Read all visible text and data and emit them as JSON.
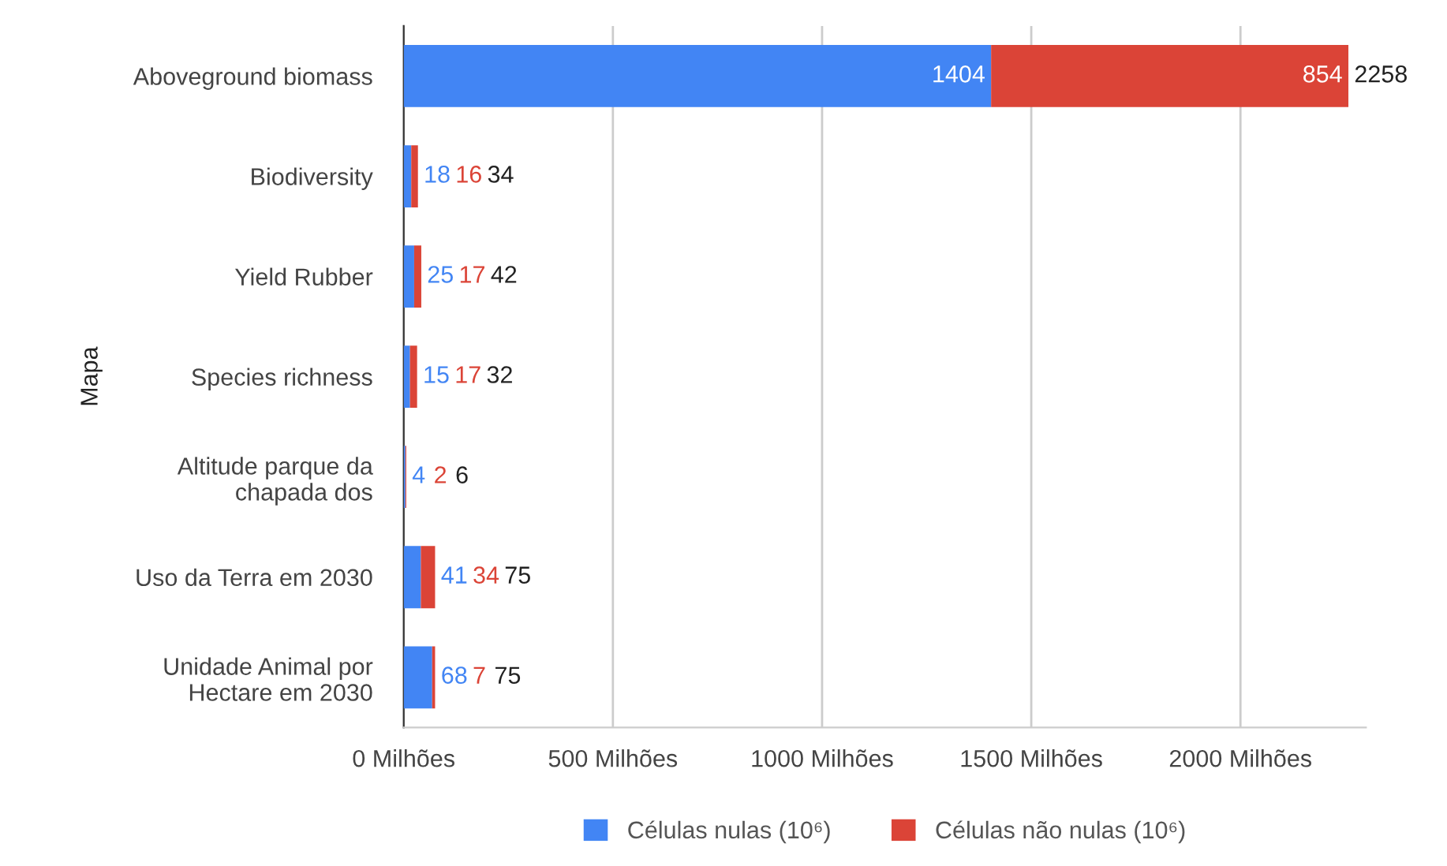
{
  "chart_data": {
    "type": "bar",
    "orientation": "horizontal",
    "stacked": true,
    "ylabel": "Mapa",
    "categories": [
      "Aboveground biomass",
      "Biodiversity",
      "Yield Rubber",
      "Species richness",
      "Altitude parque da chapada dos",
      "Uso da Terra em 2030",
      "Unidade Animal por Hectare em 2030"
    ],
    "series": [
      {
        "name": "Células nulas (10⁶)",
        "color": "#4285f4",
        "values": [
          1404,
          18,
          25,
          15,
          4,
          41,
          68
        ]
      },
      {
        "name": "Células não nulas (10⁶)",
        "color": "#db4437",
        "values": [
          854,
          16,
          17,
          17,
          2,
          34,
          7
        ]
      }
    ],
    "totals": [
      "2258",
      "34",
      "42",
      "32",
      "6",
      "75",
      "75"
    ],
    "data_labels": true,
    "xlim": [
      0,
      2300
    ],
    "xticks": [
      {
        "value": 0,
        "label": "0 Milhões"
      },
      {
        "value": 500,
        "label": "500 Milhões"
      },
      {
        "value": 1000,
        "label": "1000 Milhões"
      },
      {
        "value": 1500,
        "label": "1500 Milhões"
      },
      {
        "value": 2000,
        "label": "2000 Milhões"
      }
    ],
    "grid": "x",
    "legend": "bottom"
  }
}
